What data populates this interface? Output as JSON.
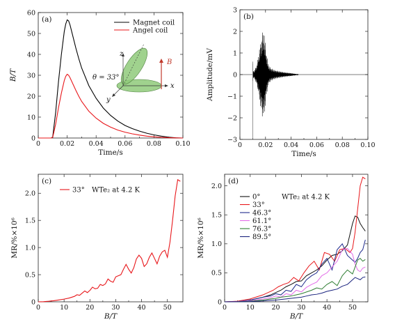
{
  "chart_data": [
    {
      "type": "line",
      "panel_label": "(a)",
      "xlabel": "Time/s",
      "ylabel": "B/T",
      "xlim": [
        0,
        0.1
      ],
      "ylim": [
        0,
        60
      ],
      "xticks": [
        "0",
        "0.02",
        "0.04",
        "0.06",
        "0.08",
        "0.10"
      ],
      "xtick_values": [
        0,
        0.02,
        0.04,
        0.06,
        0.08,
        0.1
      ],
      "yticks": [
        "0",
        "10",
        "20",
        "30",
        "40",
        "50",
        "60"
      ],
      "ytick_values": [
        0,
        10,
        20,
        30,
        40,
        50,
        60
      ],
      "legend_position": "top-right",
      "series": [
        {
          "name": "Magnet coil",
          "color": "#000000",
          "x": [
            0,
            0.009,
            0.01,
            0.012,
            0.014,
            0.016,
            0.018,
            0.019,
            0.02,
            0.021,
            0.022,
            0.024,
            0.026,
            0.028,
            0.03,
            0.035,
            0.04,
            0.045,
            0.05,
            0.055,
            0.06,
            0.065,
            0.07,
            0.075,
            0.08,
            0.085,
            0.09,
            0.095,
            0.1
          ],
          "y": [
            0,
            0,
            0.5,
            12,
            27,
            40,
            51,
            54.5,
            56.5,
            56,
            54,
            48.5,
            43,
            38,
            33.5,
            25,
            19,
            14.3,
            10.8,
            8.1,
            6.0,
            4.5,
            3.3,
            2.3,
            1.5,
            0.9,
            0.4,
            0.1,
            0
          ]
        },
        {
          "name": "Angel coil",
          "color": "#e8161a",
          "x": [
            0,
            0.009,
            0.01,
            0.012,
            0.014,
            0.016,
            0.018,
            0.019,
            0.02,
            0.021,
            0.022,
            0.024,
            0.026,
            0.028,
            0.03,
            0.035,
            0.04,
            0.045,
            0.05,
            0.055,
            0.06,
            0.065,
            0.07,
            0.075,
            0.08,
            0.085,
            0.09,
            0.095,
            0.1
          ],
          "y": [
            0,
            0,
            0.3,
            6.5,
            14.5,
            21.5,
            27.5,
            29.5,
            30.5,
            30,
            28.8,
            25.8,
            22.8,
            20,
            17.5,
            12.8,
            9.5,
            7.0,
            5.2,
            3.8,
            2.8,
            2.0,
            1.4,
            0.9,
            0.55,
            0.3,
            0.15,
            0.05,
            0
          ]
        }
      ],
      "inset": {
        "theta_label": "θ = 33°",
        "axis_x": "x",
        "axis_y": "y",
        "axis_z": "z",
        "field_label": "B",
        "field_color": "#c0392b",
        "ellipse_color": "#8fca7a"
      }
    },
    {
      "type": "line",
      "panel_label": "(b)",
      "xlabel": "Time/s",
      "ylabel": "Amplitude/mV",
      "xlim": [
        0,
        0.1
      ],
      "ylim": [
        -3,
        3
      ],
      "xticks": [
        "0",
        "0.02",
        "0.04",
        "0.06",
        "0.08",
        "0.10"
      ],
      "xtick_values": [
        0,
        0.02,
        0.04,
        0.06,
        0.08,
        0.1
      ],
      "yticks": [
        "−3",
        "−2",
        "−1",
        "0",
        "1",
        "2",
        "3"
      ],
      "ytick_values": [
        -3,
        -2,
        -1,
        0,
        1,
        2,
        3
      ],
      "signal": {
        "color": "#000000",
        "envelope_t": [
          0,
          0.0098,
          0.01,
          0.0102,
          0.011,
          0.012,
          0.013,
          0.014,
          0.015,
          0.016,
          0.017,
          0.018,
          0.019,
          0.02,
          0.021,
          0.022,
          0.023,
          0.025,
          0.027,
          0.03,
          0.035,
          0.04,
          0.044,
          0.046,
          0.1
        ],
        "envelope_amp": [
          0,
          0,
          0.6,
          0.25,
          0.15,
          0.3,
          0.45,
          0.75,
          1.1,
          1.5,
          1.85,
          2.1,
          1.95,
          1.4,
          0.9,
          0.55,
          0.38,
          0.28,
          0.22,
          0.17,
          0.11,
          0.07,
          0.03,
          0,
          0
        ],
        "spike_t": 0.01,
        "spike_min": -2.95
      }
    },
    {
      "type": "line",
      "panel_label": "(c)",
      "xlabel": "B/T",
      "ylabel": "MR/%×10⁶",
      "xlim": [
        0,
        56
      ],
      "ylim": [
        0,
        2.35
      ],
      "xticks": [
        "0",
        "10",
        "20",
        "30",
        "40",
        "50"
      ],
      "xtick_values": [
        0,
        10,
        20,
        30,
        40,
        50
      ],
      "yticks": [
        "0",
        "0.5",
        "1.0",
        "1.5",
        "2.0"
      ],
      "ytick_values": [
        0,
        0.5,
        1.0,
        1.5,
        2.0
      ],
      "legend_title": "WTe₂ at 4.2 K",
      "series": [
        {
          "name": "33°",
          "color": "#e8161a",
          "x": [
            0,
            2,
            4,
            6,
            8,
            10,
            12,
            14,
            15,
            16,
            17,
            18,
            19,
            20,
            21,
            22,
            23,
            24,
            25,
            26,
            27,
            28,
            29,
            30,
            31,
            32,
            33,
            34,
            35,
            36,
            37,
            38,
            39,
            40,
            41,
            42,
            43,
            44,
            45,
            46,
            47,
            48,
            49,
            50,
            51,
            52,
            53,
            54,
            55
          ],
          "y": [
            0,
            0.003,
            0.01,
            0.02,
            0.035,
            0.05,
            0.07,
            0.1,
            0.13,
            0.12,
            0.16,
            0.2,
            0.17,
            0.21,
            0.27,
            0.24,
            0.25,
            0.32,
            0.3,
            0.33,
            0.42,
            0.38,
            0.36,
            0.46,
            0.48,
            0.5,
            0.6,
            0.69,
            0.6,
            0.53,
            0.63,
            0.79,
            0.86,
            0.8,
            0.65,
            0.7,
            0.82,
            0.9,
            0.8,
            0.7,
            0.84,
            0.92,
            0.95,
            0.82,
            1.1,
            1.5,
            1.95,
            2.25,
            2.22
          ]
        }
      ]
    },
    {
      "type": "line",
      "panel_label": "(d)",
      "xlabel": "B/T",
      "ylabel": "MR/%×10⁶",
      "xlim": [
        0,
        56
      ],
      "ylim": [
        0,
        2.2
      ],
      "xticks": [
        "0",
        "10",
        "20",
        "30",
        "40",
        "50"
      ],
      "xtick_values": [
        0,
        10,
        20,
        30,
        40,
        50
      ],
      "yticks": [
        "0",
        "0.5",
        "1.0",
        "1.5",
        "2.0"
      ],
      "ytick_values": [
        0,
        0.5,
        1.0,
        1.5,
        2.0
      ],
      "legend_title": "WTe₂ at 4.2 K",
      "series": [
        {
          "name": "0°",
          "color": "#111111",
          "x": [
            0,
            5,
            10,
            15,
            18,
            20,
            22,
            24,
            26,
            28,
            30,
            32,
            34,
            36,
            38,
            40,
            42,
            44,
            46,
            48,
            50,
            51,
            52,
            53,
            54,
            55
          ],
          "y": [
            0,
            0.005,
            0.03,
            0.08,
            0.12,
            0.16,
            0.2,
            0.26,
            0.3,
            0.35,
            0.36,
            0.45,
            0.5,
            0.55,
            0.62,
            0.72,
            0.8,
            0.82,
            0.88,
            0.98,
            1.35,
            1.48,
            1.46,
            1.35,
            1.28,
            1.22
          ]
        },
        {
          "name": "33°",
          "color": "#e8161a",
          "x": [
            0,
            5,
            10,
            15,
            17,
            19,
            21,
            23,
            25,
            27,
            29,
            31,
            33,
            35,
            37,
            39,
            41,
            43,
            45,
            47,
            49,
            50,
            51,
            52,
            53,
            54,
            55
          ],
          "y": [
            0,
            0.01,
            0.05,
            0.12,
            0.16,
            0.2,
            0.26,
            0.3,
            0.33,
            0.42,
            0.36,
            0.5,
            0.62,
            0.7,
            0.55,
            0.85,
            0.82,
            0.7,
            0.9,
            0.92,
            0.85,
            0.92,
            1.2,
            1.6,
            2.0,
            2.15,
            2.12
          ]
        },
        {
          "name": "46.3°",
          "color": "#1e2a8c",
          "x": [
            0,
            5,
            10,
            15,
            18,
            20,
            22,
            24,
            26,
            28,
            30,
            32,
            34,
            36,
            38,
            40,
            42,
            44,
            46,
            48,
            50,
            51,
            52,
            53,
            54,
            55
          ],
          "y": [
            0,
            0.005,
            0.03,
            0.08,
            0.1,
            0.14,
            0.12,
            0.2,
            0.18,
            0.3,
            0.26,
            0.38,
            0.45,
            0.5,
            0.65,
            0.75,
            0.55,
            0.9,
            1.0,
            0.8,
            0.72,
            0.68,
            0.75,
            0.85,
            0.9,
            1.07
          ]
        },
        {
          "name": "61.1°",
          "color": "#e36ce8",
          "x": [
            0,
            5,
            10,
            15,
            18,
            20,
            22,
            24,
            26,
            28,
            30,
            32,
            34,
            36,
            38,
            40,
            42,
            44,
            46,
            48,
            50,
            51,
            52,
            53,
            54,
            55
          ],
          "y": [
            0,
            0.003,
            0.02,
            0.05,
            0.07,
            0.1,
            0.08,
            0.14,
            0.12,
            0.2,
            0.17,
            0.25,
            0.3,
            0.34,
            0.45,
            0.5,
            0.6,
            0.7,
            0.9,
            0.92,
            0.82,
            0.65,
            0.55,
            0.52,
            0.58,
            0.6
          ]
        },
        {
          "name": "76.3°",
          "color": "#2e7d32",
          "x": [
            0,
            5,
            10,
            15,
            18,
            20,
            22,
            24,
            26,
            28,
            30,
            32,
            34,
            36,
            38,
            40,
            42,
            44,
            46,
            48,
            50,
            51,
            52,
            53,
            54,
            55
          ],
          "y": [
            0,
            0.002,
            0.01,
            0.03,
            0.05,
            0.06,
            0.08,
            0.09,
            0.1,
            0.12,
            0.14,
            0.17,
            0.2,
            0.24,
            0.22,
            0.3,
            0.35,
            0.28,
            0.45,
            0.55,
            0.48,
            0.6,
            0.72,
            0.75,
            0.7,
            0.73
          ]
        },
        {
          "name": "89.5°",
          "color": "#1a237e",
          "x": [
            0,
            5,
            10,
            15,
            18,
            20,
            22,
            24,
            26,
            28,
            30,
            32,
            34,
            36,
            38,
            40,
            42,
            44,
            46,
            48,
            50,
            51,
            52,
            53,
            54,
            55
          ],
          "y": [
            0,
            0.001,
            0.005,
            0.015,
            0.025,
            0.03,
            0.04,
            0.05,
            0.06,
            0.07,
            0.08,
            0.1,
            0.12,
            0.13,
            0.15,
            0.18,
            0.2,
            0.22,
            0.27,
            0.3,
            0.38,
            0.42,
            0.4,
            0.38,
            0.42,
            0.43
          ]
        }
      ]
    }
  ]
}
